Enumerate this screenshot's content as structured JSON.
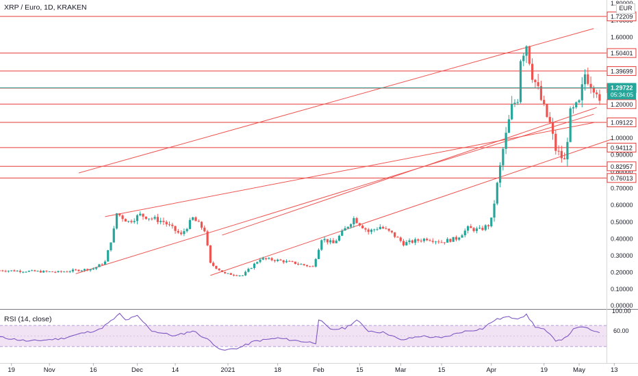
{
  "header": {
    "title": "XRP / Euro, 1D, KRAKEN",
    "currency": "EUR",
    "rsi_title": "RSI (14, close)"
  },
  "colors": {
    "bull": "#26a69a",
    "bear": "#ef5350",
    "level_line": "#e53935",
    "channel": "#ef5350",
    "price_line": "#26a69a",
    "rsi_line": "#7e57c2",
    "rsi_band": "#e1bee7",
    "axis_text": "#131722"
  },
  "chart_data": [
    {
      "type": "candlestick",
      "title": "XRP / Euro, 1D, KRAKEN",
      "y_axis_ticks": [
        "0.10000",
        "0.20000",
        "0.30000",
        "0.40000",
        "0.50000",
        "0.60000",
        "0.70000",
        "0.80000",
        "0.90000",
        "1.00000",
        "1.10000",
        "1.20000",
        "1.30000",
        "1.40000",
        "1.50000",
        "1.60000",
        "1.70000"
      ],
      "y_axis_bottom_label": "0.00000",
      "y_axis_top_label": "1.80000",
      "ylim": [
        -0.02,
        1.82
      ],
      "x_axis_ticks": [
        {
          "label": "19",
          "date": "2020-10-19"
        },
        {
          "label": "Nov",
          "date": "2020-11-01"
        },
        {
          "label": "16",
          "date": "2020-11-16"
        },
        {
          "label": "Dec",
          "date": "2020-12-01"
        },
        {
          "label": "14",
          "date": "2020-12-14"
        },
        {
          "label": "2021",
          "date": "2021-01-01"
        },
        {
          "label": "18",
          "date": "2021-01-18"
        },
        {
          "label": "Feb",
          "date": "2021-02-01"
        },
        {
          "label": "15",
          "date": "2021-02-15"
        },
        {
          "label": "Mar",
          "date": "2021-03-01"
        },
        {
          "label": "15",
          "date": "2021-03-15"
        },
        {
          "label": "Apr",
          "date": "2021-04-01"
        },
        {
          "label": "19",
          "date": "2021-04-19"
        },
        {
          "label": "May",
          "date": "2021-05-01"
        },
        {
          "label": "13",
          "date": "2021-05-13"
        }
      ],
      "horizontal_levels": [
        1.72209,
        1.50401,
        1.39699,
        1.29521,
        1.2,
        1.09122,
        0.94112,
        0.82957,
        0.76013
      ],
      "level_labels": [
        "1.72209",
        "1.50401",
        "1.39699",
        "1.29521",
        "1.20000",
        "1.09122",
        "0.94112",
        "0.82957",
        "0.76013"
      ],
      "current_price": {
        "value": 1.29722,
        "label": "1.29722",
        "countdown": "05:34:05"
      },
      "channels": [
        {
          "from": {
            "date": "2020-11-11",
            "y": 0.79
          },
          "to": {
            "date": "2021-05-06",
            "y": 1.65
          }
        },
        {
          "from": {
            "date": "2020-11-20",
            "y": 0.53
          },
          "to": {
            "date": "2021-05-06",
            "y": 1.09
          }
        },
        {
          "from": {
            "date": "2020-12-30",
            "y": 0.42
          },
          "to": {
            "date": "2021-05-07",
            "y": 1.18
          }
        },
        {
          "from": {
            "date": "2020-11-10",
            "y": 0.19
          },
          "to": {
            "date": "2021-05-06",
            "y": 1.14
          }
        },
        {
          "from": {
            "date": "2020-12-26",
            "y": 0.18
          },
          "to": {
            "date": "2021-05-12",
            "y": 0.99
          }
        }
      ],
      "anchors": [
        {
          "date": "2020-10-15",
          "price": 0.21
        },
        {
          "date": "2020-11-04",
          "price": 0.2
        },
        {
          "date": "2020-11-16",
          "price": 0.22
        },
        {
          "date": "2020-11-20",
          "price": 0.26
        },
        {
          "date": "2020-11-23",
          "price": 0.45
        },
        {
          "date": "2020-11-24",
          "price": 0.55
        },
        {
          "date": "2020-11-28",
          "price": 0.5
        },
        {
          "date": "2020-12-02",
          "price": 0.54
        },
        {
          "date": "2020-12-10",
          "price": 0.5
        },
        {
          "date": "2020-12-16",
          "price": 0.42
        },
        {
          "date": "2020-12-20",
          "price": 0.52
        },
        {
          "date": "2020-12-24",
          "price": 0.45
        },
        {
          "date": "2020-12-26",
          "price": 0.25
        },
        {
          "date": "2020-12-31",
          "price": 0.19
        },
        {
          "date": "2021-01-06",
          "price": 0.18
        },
        {
          "date": "2021-01-12",
          "price": 0.28
        },
        {
          "date": "2021-01-18",
          "price": 0.27
        },
        {
          "date": "2021-01-25",
          "price": 0.25
        },
        {
          "date": "2021-01-30",
          "price": 0.23
        },
        {
          "date": "2021-02-02",
          "price": 0.4
        },
        {
          "date": "2021-02-06",
          "price": 0.37
        },
        {
          "date": "2021-02-13",
          "price": 0.52
        },
        {
          "date": "2021-02-18",
          "price": 0.44
        },
        {
          "date": "2021-02-22",
          "price": 0.47
        },
        {
          "date": "2021-02-26",
          "price": 0.43
        },
        {
          "date": "2021-03-02",
          "price": 0.37
        },
        {
          "date": "2021-03-10",
          "price": 0.4
        },
        {
          "date": "2021-03-15",
          "price": 0.38
        },
        {
          "date": "2021-03-20",
          "price": 0.4
        },
        {
          "date": "2021-03-24",
          "price": 0.46
        },
        {
          "date": "2021-03-28",
          "price": 0.45
        },
        {
          "date": "2021-03-31",
          "price": 0.48
        },
        {
          "date": "2021-04-01",
          "price": 0.51
        },
        {
          "date": "2021-04-03",
          "price": 0.72
        },
        {
          "date": "2021-04-05",
          "price": 0.93
        },
        {
          "date": "2021-04-08",
          "price": 1.18
        },
        {
          "date": "2021-04-10",
          "price": 1.24
        },
        {
          "date": "2021-04-11",
          "price": 1.48
        },
        {
          "date": "2021-04-13",
          "price": 1.56
        },
        {
          "date": "2021-04-15",
          "price": 1.38
        },
        {
          "date": "2021-04-17",
          "price": 1.28
        },
        {
          "date": "2021-04-19",
          "price": 1.17
        },
        {
          "date": "2021-04-21",
          "price": 1.08
        },
        {
          "date": "2021-04-23",
          "price": 0.93
        },
        {
          "date": "2021-04-26",
          "price": 0.86
        },
        {
          "date": "2021-04-28",
          "price": 1.14
        },
        {
          "date": "2021-05-01",
          "price": 1.2
        },
        {
          "date": "2021-05-03",
          "price": 1.38
        },
        {
          "date": "2021-05-05",
          "price": 1.33
        },
        {
          "date": "2021-05-07",
          "price": 1.29
        },
        {
          "date": "2021-05-08",
          "price": 1.19
        }
      ]
    },
    {
      "type": "line",
      "title": "RSI (14, close)",
      "y_axis_ticks": [
        "60.00"
      ],
      "y_axis_top_label": "100.00",
      "ylim": [
        0,
        100
      ],
      "band": [
        30,
        70
      ],
      "anchors": [
        {
          "date": "2020-10-15",
          "value": 48
        },
        {
          "date": "2020-10-25",
          "value": 40
        },
        {
          "date": "2020-11-05",
          "value": 45
        },
        {
          "date": "2020-11-12",
          "value": 55
        },
        {
          "date": "2020-11-18",
          "value": 62
        },
        {
          "date": "2020-11-22",
          "value": 78
        },
        {
          "date": "2020-11-25",
          "value": 92
        },
        {
          "date": "2020-11-27",
          "value": 80
        },
        {
          "date": "2020-12-01",
          "value": 88
        },
        {
          "date": "2020-12-06",
          "value": 60
        },
        {
          "date": "2020-12-14",
          "value": 50
        },
        {
          "date": "2020-12-20",
          "value": 60
        },
        {
          "date": "2020-12-26",
          "value": 40
        },
        {
          "date": "2020-12-30",
          "value": 22
        },
        {
          "date": "2021-01-05",
          "value": 28
        },
        {
          "date": "2021-01-10",
          "value": 40
        },
        {
          "date": "2021-01-18",
          "value": 46
        },
        {
          "date": "2021-01-26",
          "value": 40
        },
        {
          "date": "2021-01-31",
          "value": 37
        },
        {
          "date": "2021-02-01",
          "value": 82
        },
        {
          "date": "2021-02-05",
          "value": 62
        },
        {
          "date": "2021-02-10",
          "value": 65
        },
        {
          "date": "2021-02-14",
          "value": 80
        },
        {
          "date": "2021-02-18",
          "value": 60
        },
        {
          "date": "2021-02-24",
          "value": 56
        },
        {
          "date": "2021-03-01",
          "value": 42
        },
        {
          "date": "2021-03-08",
          "value": 50
        },
        {
          "date": "2021-03-15",
          "value": 46
        },
        {
          "date": "2021-03-22",
          "value": 58
        },
        {
          "date": "2021-03-29",
          "value": 64
        },
        {
          "date": "2021-04-02",
          "value": 80
        },
        {
          "date": "2021-04-06",
          "value": 86
        },
        {
          "date": "2021-04-10",
          "value": 84
        },
        {
          "date": "2021-04-13",
          "value": 90
        },
        {
          "date": "2021-04-16",
          "value": 68
        },
        {
          "date": "2021-04-19",
          "value": 62
        },
        {
          "date": "2021-04-23",
          "value": 42
        },
        {
          "date": "2021-04-26",
          "value": 45
        },
        {
          "date": "2021-04-29",
          "value": 62
        },
        {
          "date": "2021-05-02",
          "value": 68
        },
        {
          "date": "2021-05-05",
          "value": 61
        },
        {
          "date": "2021-05-08",
          "value": 58
        }
      ]
    }
  ]
}
